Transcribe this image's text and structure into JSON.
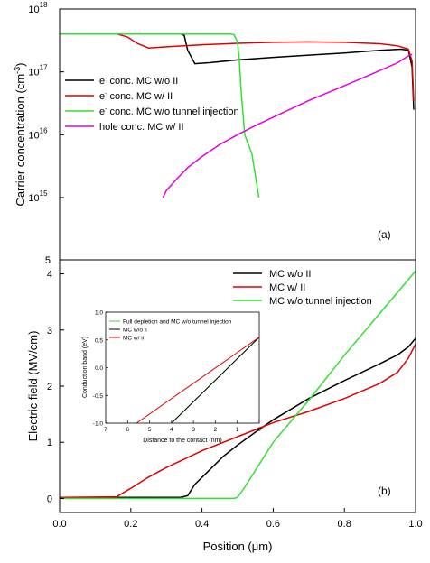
{
  "chart_data": [
    {
      "type": "line",
      "panel_label": "(a)",
      "ylabel": "Carrier concentration (cm",
      "ylabel_sup": "-3",
      "ylabel_end": ")",
      "yscale": "log",
      "xlim": [
        0.0,
        1.0
      ],
      "ylim_exp": [
        15,
        18
      ],
      "ytick_bases": [
        "10",
        "10",
        "10",
        "10"
      ],
      "ytick_exps": [
        "15",
        "16",
        "17",
        "18"
      ],
      "ytick_extra": "5",
      "legend_pos": "upper-left",
      "series": [
        {
          "name_pre": "e",
          "name_sup": "-",
          "name_post": " conc. MC w/o II",
          "color": "#000000",
          "x": [
            0.0,
            0.34,
            0.35,
            0.36,
            0.38,
            0.42,
            0.5,
            0.6,
            0.7,
            0.8,
            0.9,
            0.96,
            0.98,
            0.99,
            0.995
          ],
          "y": [
            4e+17,
            4e+17,
            3.8e+17,
            2.2e+17,
            1.35e+17,
            1.4e+17,
            1.55e+17,
            1.7e+17,
            1.85e+17,
            2e+17,
            2.2e+17,
            2.3e+17,
            2.2e+17,
            1.2e+17,
            2.5e+16
          ]
        },
        {
          "name_pre": "e",
          "name_sup": "-",
          "name_post": " conc. MC w/ II",
          "color": "#e00000",
          "x": [
            0.0,
            0.16,
            0.19,
            0.22,
            0.25,
            0.3,
            0.4,
            0.5,
            0.6,
            0.7,
            0.8,
            0.9,
            0.95,
            0.98,
            0.99,
            0.995
          ],
          "y": [
            4e+17,
            4e+17,
            3.6e+17,
            2.8e+17,
            2.4e+17,
            2.5e+17,
            2.7e+17,
            2.85e+17,
            2.95e+17,
            3e+17,
            2.95e+17,
            2.8e+17,
            2.6e+17,
            2.3e+17,
            1.5e+17,
            3.5e+16
          ]
        },
        {
          "name_pre": "e",
          "name_sup": "-",
          "name_post": " conc. MC w/o tunnel injection",
          "color": "#33e033",
          "x": [
            0.0,
            0.48,
            0.49,
            0.5,
            0.505,
            0.51,
            0.52,
            0.54,
            0.56
          ],
          "y": [
            4e+17,
            4e+17,
            3.9e+17,
            3e+17,
            1.5e+17,
            5e+16,
            1e+16,
            5000000000000000.0,
            1000000000000000.0
          ]
        },
        {
          "name_pre": "hole conc. MC w/ II",
          "name_sup": "",
          "name_post": "",
          "color": "#e000e0",
          "x": [
            0.29,
            0.3,
            0.33,
            0.36,
            0.4,
            0.45,
            0.5,
            0.55,
            0.6,
            0.7,
            0.8,
            0.9,
            0.95,
            0.98,
            0.99
          ],
          "y": [
            1000000000000000.0,
            1300000000000000.0,
            2000000000000000.0,
            3000000000000000.0,
            4500000000000000.0,
            7000000000000000.0,
            1e+16,
            1.4e+16,
            1.9e+16,
            3.5e+16,
            6e+16,
            1.05e+17,
            1.4e+17,
            1.8e+17,
            1.9e+17
          ]
        }
      ]
    },
    {
      "type": "line",
      "panel_label": "(b)",
      "xlabel_pre": "Position (",
      "xlabel_mu": "μ",
      "xlabel_post": "m)",
      "ylabel": "Electric field (MV/cm)",
      "xlim": [
        0.0,
        1.0
      ],
      "ylim": [
        -0.25,
        4.25
      ],
      "xticks": [
        "0.0",
        "0.2",
        "0.4",
        "0.6",
        "0.8",
        "1.0"
      ],
      "yticks": [
        "0",
        "1",
        "2",
        "3",
        "4"
      ],
      "legend_pos": "upper-right",
      "series": [
        {
          "name": "MC w/o II",
          "color": "#000000",
          "x": [
            0.0,
            0.34,
            0.36,
            0.38,
            0.42,
            0.46,
            0.5,
            0.55,
            0.6,
            0.7,
            0.8,
            0.9,
            0.95,
            0.98,
            1.0
          ],
          "y": [
            0.02,
            0.02,
            0.05,
            0.25,
            0.5,
            0.75,
            0.95,
            1.18,
            1.4,
            1.78,
            2.1,
            2.4,
            2.56,
            2.7,
            2.85
          ]
        },
        {
          "name": "MC w/ II",
          "color": "#e00000",
          "x": [
            0.0,
            0.16,
            0.2,
            0.25,
            0.3,
            0.4,
            0.5,
            0.6,
            0.7,
            0.8,
            0.9,
            0.95,
            0.98,
            1.0
          ],
          "y": [
            0.02,
            0.03,
            0.18,
            0.38,
            0.55,
            0.85,
            1.1,
            1.35,
            1.55,
            1.78,
            2.05,
            2.25,
            2.5,
            2.75
          ]
        },
        {
          "name": "MC w/o tunnel injection",
          "color": "#33e033",
          "x": [
            0.0,
            0.49,
            0.5,
            0.52,
            0.6,
            0.7,
            0.8,
            0.9,
            1.0
          ],
          "y": [
            0.0,
            0.0,
            0.02,
            0.2,
            1.0,
            1.75,
            2.55,
            3.3,
            4.05
          ]
        }
      ]
    },
    {
      "type": "line",
      "role": "inset",
      "xlabel": "Distance to the contact (nm)",
      "ylabel": "Conduction band (eV)",
      "xlim": [
        7,
        0
      ],
      "ylim": [
        -1.0,
        1.0
      ],
      "xticks": [
        "7",
        "6",
        "5",
        "4",
        "3",
        "2",
        "1",
        "0"
      ],
      "yticks": [
        "1.0",
        "0.5",
        "0.0",
        "-0.5",
        "-1.0"
      ],
      "legend_pos": "upper-left",
      "series": [
        {
          "name": "Full depletion and MC w/o tunnel injection",
          "color": "#33e033",
          "x": [
            4.0,
            0.0
          ],
          "y": [
            -1.0,
            0.55
          ]
        },
        {
          "name": "MC w/o ii",
          "color": "#000000",
          "x": [
            4.0,
            0.0
          ],
          "y": [
            -1.0,
            0.55
          ]
        },
        {
          "name": "MC w/ ii",
          "color": "#e00000",
          "x": [
            5.6,
            0.0
          ],
          "y": [
            -1.0,
            0.55
          ]
        }
      ]
    }
  ]
}
